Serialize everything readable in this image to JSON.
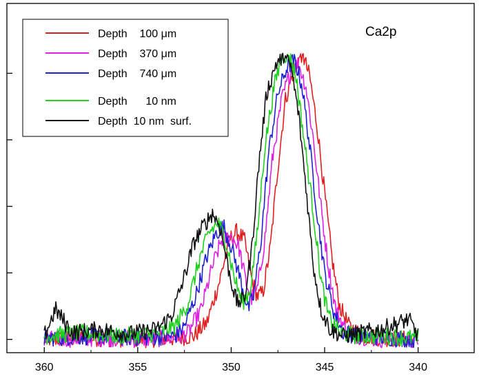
{
  "chart_data": {
    "type": "line",
    "title": "",
    "xlabel": "",
    "ylabel": "",
    "annotation": "Ca2p",
    "x_reversed": true,
    "xlim": [
      362,
      337
    ],
    "ylim": [
      -0.2,
      5.05
    ],
    "x_ticks": [
      360,
      355,
      350,
      345,
      340
    ],
    "x_tick_labels": [
      "360",
      "355",
      "350",
      "345",
      "340"
    ],
    "y_ticks": [
      0,
      1,
      2,
      3,
      4
    ],
    "y_tick_labels": [
      "",
      "",
      "",
      "",
      ""
    ],
    "grid": false,
    "legend_position": "top-left",
    "series": [
      {
        "name": "Depth    100 μm",
        "color": "#e02020",
        "points": [
          [
            360,
            0.0
          ],
          [
            357,
            0.02
          ],
          [
            355,
            0.0
          ],
          [
            353,
            0.02
          ],
          [
            352,
            0.05
          ],
          [
            351.3,
            0.25
          ],
          [
            350.6,
            0.9
          ],
          [
            350.1,
            1.5
          ],
          [
            349.7,
            1.62
          ],
          [
            349.3,
            1.5
          ],
          [
            348.9,
            0.9
          ],
          [
            348.6,
            0.65
          ],
          [
            348.3,
            0.7
          ],
          [
            347.9,
            1.4
          ],
          [
            347.5,
            2.6
          ],
          [
            347.1,
            3.6
          ],
          [
            346.6,
            4.1
          ],
          [
            346.2,
            4.3
          ],
          [
            345.8,
            3.95
          ],
          [
            345.4,
            3.2
          ],
          [
            345.0,
            2.2
          ],
          [
            344.6,
            1.2
          ],
          [
            344.2,
            0.5
          ],
          [
            343.7,
            0.2
          ],
          [
            343.0,
            0.06
          ],
          [
            342.0,
            0.02
          ],
          [
            340,
            0.0
          ]
        ]
      },
      {
        "name": "Depth    370 μm",
        "color": "#e020e0",
        "points": [
          [
            360,
            0.0
          ],
          [
            357,
            0.02
          ],
          [
            355,
            0.0
          ],
          [
            353,
            0.02
          ],
          [
            352.3,
            0.1
          ],
          [
            351.6,
            0.45
          ],
          [
            351.0,
            1.1
          ],
          [
            350.5,
            1.5
          ],
          [
            350.0,
            1.55
          ],
          [
            349.6,
            1.4
          ],
          [
            349.2,
            0.85
          ],
          [
            348.9,
            0.62
          ],
          [
            348.6,
            0.75
          ],
          [
            348.2,
            1.5
          ],
          [
            347.8,
            2.7
          ],
          [
            347.3,
            3.6
          ],
          [
            346.8,
            4.05
          ],
          [
            346.4,
            4.15
          ],
          [
            346.0,
            3.8
          ],
          [
            345.6,
            3.0
          ],
          [
            345.2,
            2.0
          ],
          [
            344.8,
            1.1
          ],
          [
            344.4,
            0.45
          ],
          [
            343.9,
            0.15
          ],
          [
            343.2,
            0.05
          ],
          [
            342.0,
            0.0
          ],
          [
            340,
            0.0
          ]
        ]
      },
      {
        "name": "Depth    740 μm",
        "color": "#2020d0",
        "points": [
          [
            360,
            0.02
          ],
          [
            357,
            0.05
          ],
          [
            355,
            0.02
          ],
          [
            353,
            0.05
          ],
          [
            352.5,
            0.2
          ],
          [
            351.9,
            0.65
          ],
          [
            351.3,
            1.25
          ],
          [
            350.8,
            1.6
          ],
          [
            350.4,
            1.7
          ],
          [
            350.0,
            1.4
          ],
          [
            349.5,
            0.9
          ],
          [
            349.1,
            0.45
          ],
          [
            348.8,
            0.65
          ],
          [
            348.4,
            1.5
          ],
          [
            348.0,
            2.8
          ],
          [
            347.5,
            3.7
          ],
          [
            347.0,
            4.1
          ],
          [
            346.6,
            4.2
          ],
          [
            346.2,
            3.8
          ],
          [
            345.8,
            2.9
          ],
          [
            345.4,
            1.9
          ],
          [
            345.0,
            1.0
          ],
          [
            344.5,
            0.4
          ],
          [
            344.0,
            0.1
          ],
          [
            343.2,
            0.05
          ],
          [
            342.0,
            0.03
          ],
          [
            340,
            0.0
          ]
        ]
      },
      {
        "name": "Depth      10 nm",
        "color": "#20d020",
        "points": [
          [
            360,
            0.05
          ],
          [
            358,
            0.1
          ],
          [
            356,
            0.05
          ],
          [
            354,
            0.08
          ],
          [
            353,
            0.2
          ],
          [
            352.3,
            0.55
          ],
          [
            351.7,
            1.2
          ],
          [
            351.2,
            1.6
          ],
          [
            350.7,
            1.75
          ],
          [
            350.3,
            1.5
          ],
          [
            349.8,
            0.9
          ],
          [
            349.4,
            0.55
          ],
          [
            349.0,
            0.72
          ],
          [
            348.6,
            1.6
          ],
          [
            348.2,
            2.9
          ],
          [
            347.7,
            3.8
          ],
          [
            347.3,
            4.25
          ],
          [
            346.9,
            4.3
          ],
          [
            346.5,
            3.9
          ],
          [
            346.1,
            3.0
          ],
          [
            345.6,
            1.9
          ],
          [
            345.2,
            0.9
          ],
          [
            344.8,
            0.35
          ],
          [
            344.2,
            0.1
          ],
          [
            343.2,
            0.05
          ],
          [
            342.0,
            0.05
          ],
          [
            340,
            0.02
          ]
        ]
      },
      {
        "name": "Depth  10 nm  surf.",
        "color": "#101010",
        "points": [
          [
            360,
            0.05
          ],
          [
            359.4,
            0.45
          ],
          [
            358.5,
            0.1
          ],
          [
            357,
            0.15
          ],
          [
            355.5,
            0.08
          ],
          [
            354,
            0.15
          ],
          [
            353.2,
            0.35
          ],
          [
            352.6,
            0.85
          ],
          [
            352.0,
            1.45
          ],
          [
            351.5,
            1.7
          ],
          [
            351.0,
            1.9
          ],
          [
            350.6,
            1.7
          ],
          [
            350.1,
            1.0
          ],
          [
            349.7,
            0.55
          ],
          [
            349.3,
            0.6
          ],
          [
            348.9,
            1.35
          ],
          [
            348.5,
            2.7
          ],
          [
            348.1,
            3.7
          ],
          [
            347.6,
            4.15
          ],
          [
            347.2,
            4.25
          ],
          [
            346.8,
            4.1
          ],
          [
            346.4,
            3.4
          ],
          [
            346.0,
            2.3
          ],
          [
            345.6,
            1.1
          ],
          [
            345.2,
            0.45
          ],
          [
            344.7,
            0.15
          ],
          [
            344.0,
            0.05
          ],
          [
            343.0,
            0.1
          ],
          [
            342.0,
            0.15
          ],
          [
            340.5,
            0.3
          ],
          [
            340,
            0.05
          ]
        ]
      }
    ]
  }
}
